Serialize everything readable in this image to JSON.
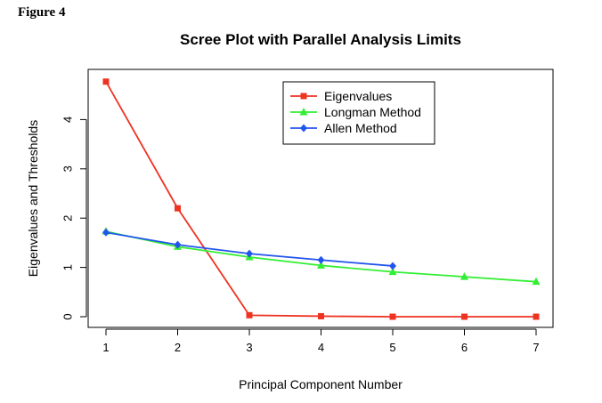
{
  "figure_label": "Figure 4",
  "chart_data": {
    "type": "line",
    "title": "Scree Plot with Parallel Analysis Limits",
    "xlabel": "Principal Component Number",
    "ylabel": "Eigenvalues and Thresholds",
    "xlim": [
      1,
      7
    ],
    "ylim": [
      0,
      4.8
    ],
    "xticks": [
      1,
      2,
      3,
      4,
      5,
      6,
      7
    ],
    "yticks": [
      0,
      1,
      2,
      3,
      4
    ],
    "grid": false,
    "legend_position": "top-right",
    "series": [
      {
        "name": "Eigenvalues",
        "color": "#ee3322",
        "marker": "square",
        "x": [
          1,
          2,
          3,
          4,
          5,
          6,
          7
        ],
        "y": [
          4.77,
          2.2,
          0.03,
          0.01,
          0.0,
          0.0,
          0.0
        ]
      },
      {
        "name": "Longman Method",
        "color": "#33ee33",
        "marker": "triangle",
        "x": [
          1,
          2,
          3,
          4,
          5,
          6,
          7
        ],
        "y": [
          1.73,
          1.42,
          1.21,
          1.04,
          0.91,
          0.81,
          0.71
        ]
      },
      {
        "name": "Allen Method",
        "color": "#2255ee",
        "marker": "diamond",
        "x": [
          1,
          2,
          3,
          4,
          5
        ],
        "y": [
          1.71,
          1.46,
          1.28,
          1.15,
          1.03
        ]
      }
    ]
  }
}
